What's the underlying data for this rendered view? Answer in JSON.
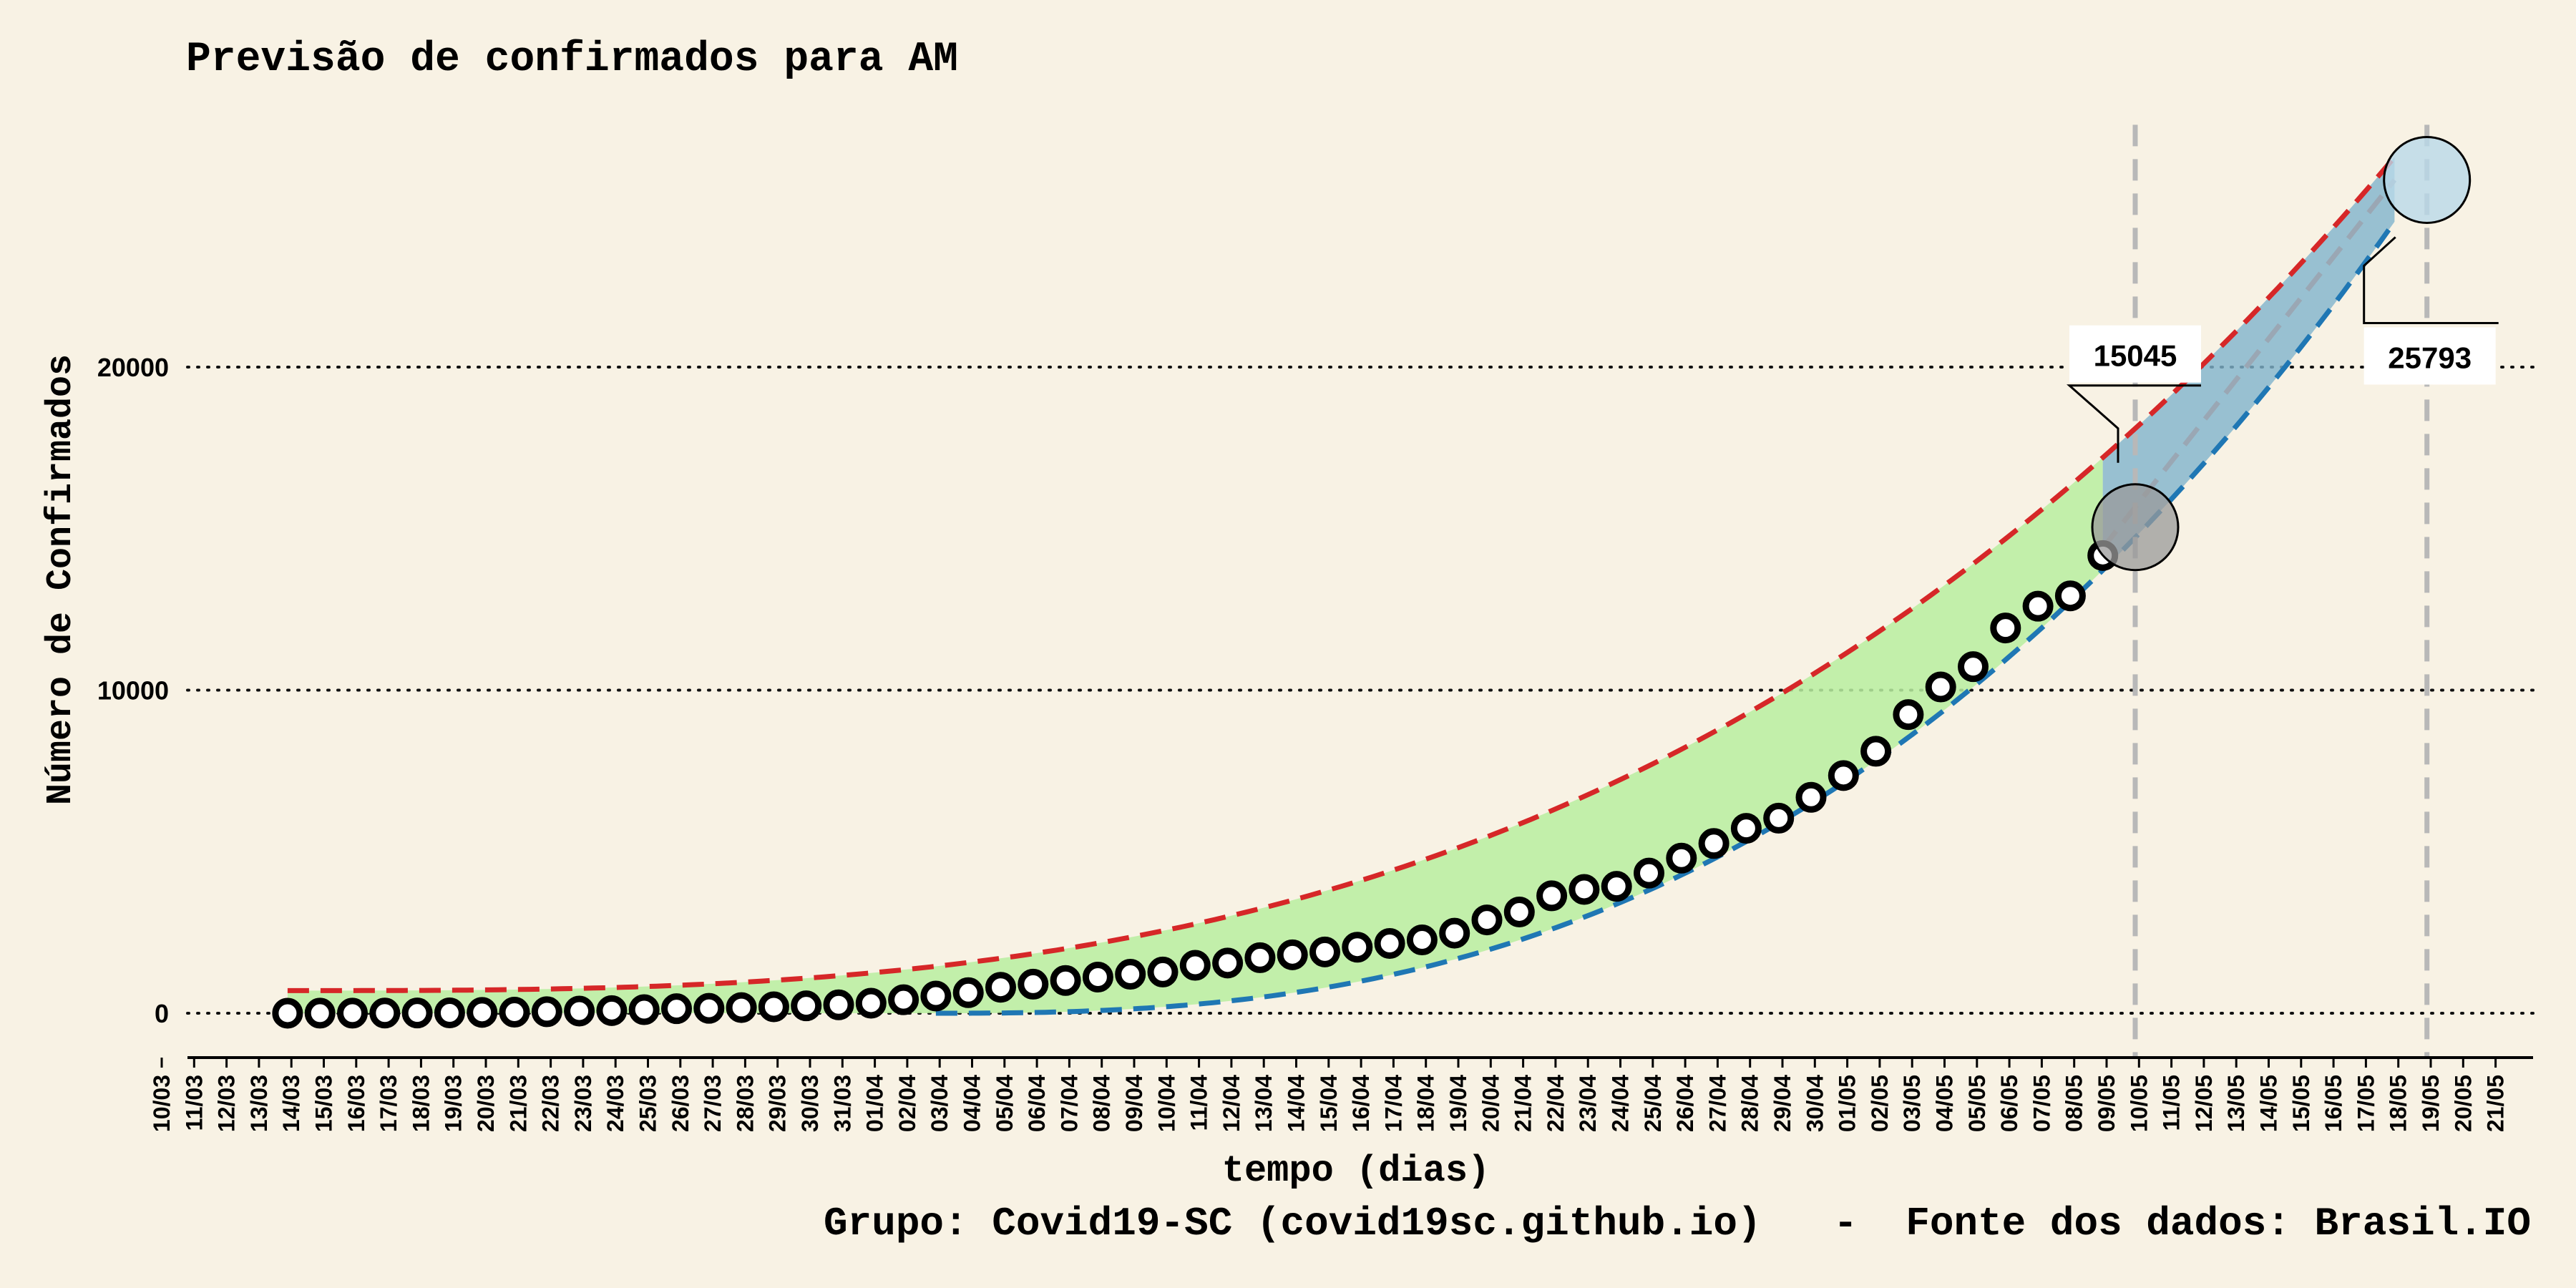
{
  "chart_data": {
    "type": "line",
    "title": "Previsão de confirmados para AM",
    "xlabel": "tempo (dias)",
    "ylabel": "Número de Confirmados",
    "footer": "Grupo: Covid19-SC (covid19sc.github.io)   -  Fonte dos dados: Brasil.IO",
    "x_tick_labels": [
      "10/03",
      "11/03",
      "12/03",
      "13/03",
      "14/03",
      "15/03",
      "16/03",
      "17/03",
      "18/03",
      "19/03",
      "20/03",
      "21/03",
      "22/03",
      "23/03",
      "24/03",
      "25/03",
      "26/03",
      "27/03",
      "28/03",
      "29/03",
      "30/03",
      "31/03",
      "01/04",
      "02/04",
      "03/04",
      "04/04",
      "05/04",
      "06/04",
      "07/04",
      "08/04",
      "09/04",
      "10/04",
      "11/04",
      "12/04",
      "13/04",
      "14/04",
      "15/04",
      "16/04",
      "17/04",
      "18/04",
      "19/04",
      "20/04",
      "21/04",
      "22/04",
      "23/04",
      "24/04",
      "25/04",
      "26/04",
      "27/04",
      "28/04",
      "29/04",
      "30/04",
      "01/05",
      "02/05",
      "03/05",
      "04/05",
      "05/05",
      "06/05",
      "07/05",
      "08/05",
      "09/05",
      "10/05",
      "11/05",
      "12/05",
      "13/05",
      "14/05",
      "15/05",
      "16/05",
      "17/05",
      "18/05",
      "19/05",
      "20/05",
      "21/05"
    ],
    "y_ticks": [
      0,
      10000,
      20000
    ],
    "y_tick_labels": [
      "0",
      "10000",
      "20000"
    ],
    "ylim": [
      -1300,
      27500
    ],
    "grid": "horizontal dotted",
    "confirmed_start_date": "13/03",
    "confirmed_values": [
      1,
      2,
      3,
      5,
      7,
      11,
      26,
      32,
      47,
      67,
      81,
      111,
      140,
      151,
      175,
      200,
      229,
      260,
      311,
      417,
      532,
      636,
      804,
      899,
      1013,
      1119,
      1206,
      1275,
      1484,
      1554,
      1719,
      1809,
      1897,
      2044,
      2160,
      2270,
      2479,
      2888,
      3135,
      3635,
      3833,
      3928,
      4337,
      4801,
      5254,
      5723,
      6038,
      6683,
      7357,
      8109,
      9243,
      10099,
      10727,
      11925,
      12599,
      12919,
      14168
    ],
    "model_curves": {
      "upper": {
        "color": "#d62728",
        "start": "13/03",
        "end": "17/05",
        "start_value": 700,
        "end_value": 26500,
        "exponent": 3
      },
      "lower": {
        "color": "#1f77b4",
        "start": "02/04",
        "end": "17/05",
        "start_value": 0,
        "end_value": 24500,
        "exponent": 2.6
      },
      "central": {
        "color": "#9aa7b4",
        "start": "08/05",
        "end": "17/05",
        "start_value": 14400,
        "end_value": 25793
      },
      "band_color_fit": "#b8efa0",
      "band_color_forecast": "#7fb3cc"
    },
    "forecasts": [
      {
        "date": "09/05",
        "value": 15045,
        "label": "15045",
        "marker_color": "#9a9a9a"
      },
      {
        "date": "18/05",
        "value": 25793,
        "label": "25793",
        "marker_color": "#b9d8e8"
      }
    ]
  }
}
